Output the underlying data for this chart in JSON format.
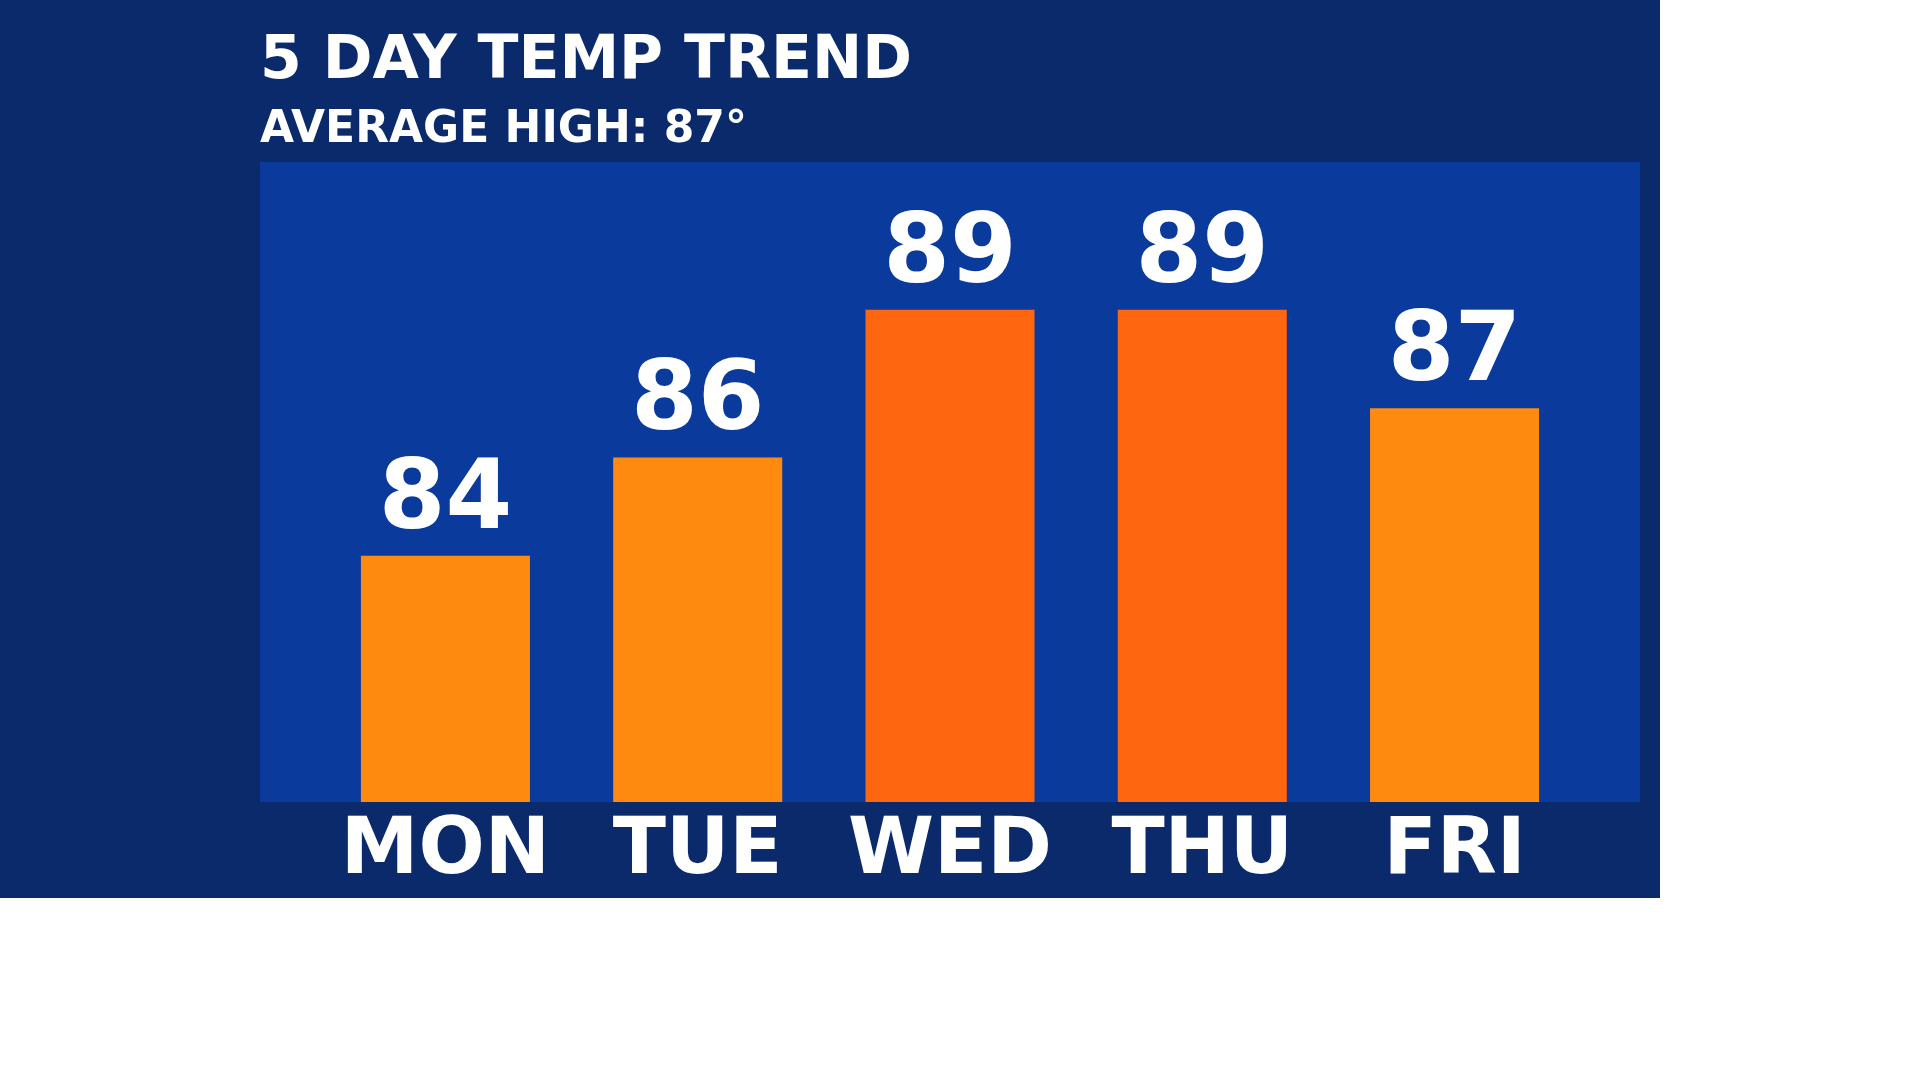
{
  "chart_data": {
    "type": "bar",
    "title": "5 DAY TEMP TREND",
    "subtitle": "AVERAGE HIGH: 87°",
    "categories": [
      "MON",
      "TUE",
      "WED",
      "THU",
      "FRI"
    ],
    "values": [
      84,
      86,
      89,
      89,
      87
    ],
    "colors": [
      "#ff8a10",
      "#ff8a10",
      "#ff6610",
      "#ff6610",
      "#ff8a10"
    ],
    "ylim": [
      79,
      92
    ],
    "data_labels": true,
    "tick_labels": "x",
    "grid": false
  }
}
